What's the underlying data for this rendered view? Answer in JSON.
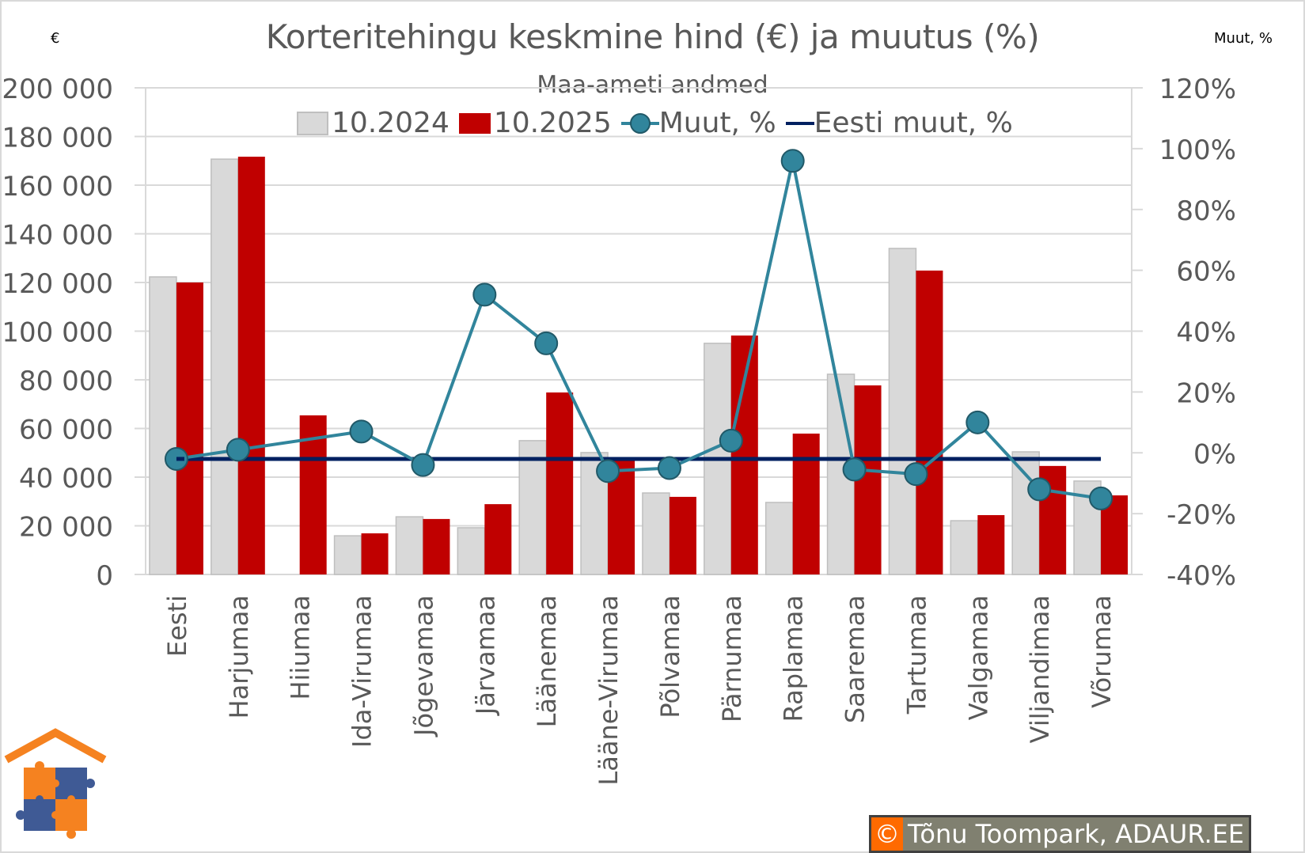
{
  "title": "Korteritehingu keskmine hind (€) ja muutus (%)",
  "subtitle": "Maa-ameti andmed",
  "axis_unit_left": "€",
  "axis_unit_right": "Muut, %",
  "legend": {
    "s1": "10.2024",
    "s2": "10.2025",
    "s3": "Muut, %",
    "s4": "Eesti muut, %"
  },
  "credit": {
    "symbol": "©",
    "text": "Tõnu Toompark, ADAUR.EE"
  },
  "colors": {
    "bar_2024": "#d9d9d9",
    "bar_2024_border": "#bfbfbf",
    "bar_2025": "#c00000",
    "line_change": "#31859c",
    "line_eesti": "#002060",
    "grid": "#d9d9d9",
    "text": "#595959"
  },
  "chart_data": {
    "type": "bar",
    "title": "Korteritehingu keskmine hind (€) ja muutus (%)",
    "subtitle": "Maa-ameti andmed",
    "xlabel": "",
    "ylabel": "€",
    "ylabel_right": "Muut, %",
    "ylim": [
      0,
      200000
    ],
    "ylim_right": [
      -40,
      120
    ],
    "yticks": [
      "0",
      "20 000",
      "40 000",
      "60 000",
      "80 000",
      "100 000",
      "120 000",
      "140 000",
      "160 000",
      "180 000",
      "200 000"
    ],
    "yticks_right": [
      "-40%",
      "-20%",
      "0%",
      "20%",
      "40%",
      "60%",
      "80%",
      "100%",
      "120%"
    ],
    "grid": true,
    "legend_position": "top",
    "categories": [
      "Eesti",
      "Harjumaa",
      "Hiiumaa",
      "Ida-Virumaa",
      "Jõgevamaa",
      "Järvamaa",
      "Läänemaa",
      "Lääne-Virumaa",
      "Põlvamaa",
      "Pärnumaa",
      "Raplamaa",
      "Saaremaa",
      "Tartumaa",
      "Valgamaa",
      "Viljandimaa",
      "Võrumaa"
    ],
    "series": [
      {
        "name": "10.2024",
        "type": "bar",
        "axis": "left",
        "values": [
          122300,
          170700,
          null,
          15900,
          23700,
          19200,
          55000,
          50100,
          33500,
          95000,
          29600,
          82300,
          134000,
          22100,
          50400,
          38400
        ]
      },
      {
        "name": "10.2025",
        "type": "bar",
        "axis": "left",
        "values": [
          120000,
          171700,
          65400,
          16900,
          22800,
          28900,
          74800,
          47500,
          31900,
          98200,
          57900,
          77700,
          124900,
          24400,
          44600,
          32500
        ]
      },
      {
        "name": "Muut, %",
        "type": "line",
        "axis": "right",
        "values": [
          -2,
          1,
          null,
          7,
          -4,
          52,
          36,
          -6,
          -5,
          4,
          96,
          -5.5,
          -7,
          10,
          -12,
          -15
        ]
      },
      {
        "name": "Eesti muut, %",
        "type": "line",
        "axis": "right",
        "values": [
          -2,
          -2,
          -2,
          -2,
          -2,
          -2,
          -2,
          -2,
          -2,
          -2,
          -2,
          -2,
          -2,
          -2,
          -2,
          -2
        ]
      }
    ]
  }
}
